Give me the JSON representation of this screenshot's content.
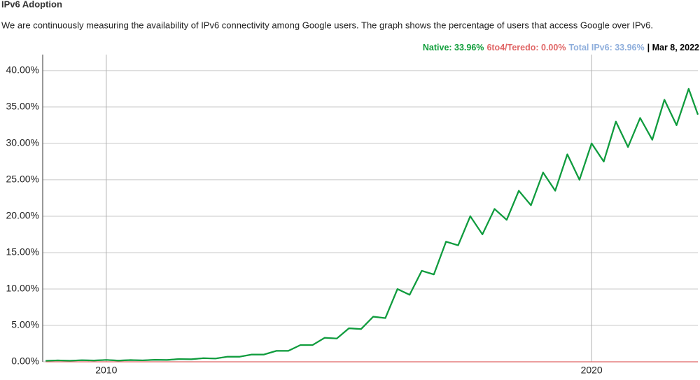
{
  "chart_data": {
    "type": "line",
    "title": "IPv6 Adoption",
    "subtitle": "We are continuously measuring the availability of IPv6 connectivity among Google users. The graph shows the percentage of users that access Google over IPv6.",
    "date": "| Mar 8, 2022",
    "x": [
      2008.75,
      2009.0,
      2009.25,
      2009.5,
      2009.75,
      2010.0,
      2010.25,
      2010.5,
      2010.75,
      2011.0,
      2011.25,
      2011.5,
      2011.75,
      2012.0,
      2012.25,
      2012.5,
      2012.75,
      2013.0,
      2013.25,
      2013.5,
      2013.75,
      2014.0,
      2014.25,
      2014.5,
      2014.75,
      2015.0,
      2015.25,
      2015.5,
      2015.75,
      2016.0,
      2016.25,
      2016.5,
      2016.75,
      2017.0,
      2017.25,
      2017.5,
      2017.75,
      2018.0,
      2018.25,
      2018.5,
      2018.75,
      2019.0,
      2019.25,
      2019.5,
      2019.75,
      2020.0,
      2020.25,
      2020.5,
      2020.75,
      2021.0,
      2021.25,
      2021.5,
      2021.75,
      2022.0,
      2022.19
    ],
    "series": [
      {
        "name": "Native: 33.96%",
        "color": "#0f9d3a",
        "values": [
          0.14,
          0.2,
          0.15,
          0.22,
          0.18,
          0.26,
          0.17,
          0.24,
          0.2,
          0.28,
          0.25,
          0.38,
          0.35,
          0.5,
          0.45,
          0.7,
          0.7,
          1.0,
          1.0,
          1.5,
          1.5,
          2.3,
          2.3,
          3.3,
          3.2,
          4.6,
          4.5,
          6.2,
          6.0,
          10.0,
          9.2,
          12.5,
          12.0,
          16.5,
          16.0,
          20.0,
          17.5,
          21.0,
          19.5,
          23.5,
          21.5,
          26.0,
          23.5,
          28.5,
          25.0,
          30.0,
          27.5,
          33.0,
          29.5,
          33.5,
          30.5,
          36.0,
          32.5,
          37.5,
          33.96
        ]
      },
      {
        "name": "6to4/Teredo: 0.00%",
        "color": "#e06666",
        "values": [
          0,
          0,
          0,
          0,
          0,
          0,
          0,
          0,
          0,
          0,
          0,
          0,
          0,
          0,
          0,
          0,
          0,
          0,
          0,
          0,
          0,
          0,
          0,
          0,
          0,
          0,
          0,
          0,
          0,
          0,
          0,
          0,
          0,
          0,
          0,
          0,
          0,
          0,
          0,
          0,
          0,
          0,
          0,
          0,
          0,
          0,
          0,
          0,
          0,
          0,
          0,
          0,
          0,
          0,
          0
        ]
      },
      {
        "name": "Total IPv6: 33.96%",
        "color": "#8eaedc",
        "values": [
          0.14,
          0.2,
          0.15,
          0.22,
          0.18,
          0.26,
          0.17,
          0.24,
          0.2,
          0.28,
          0.25,
          0.38,
          0.35,
          0.5,
          0.45,
          0.7,
          0.7,
          1.0,
          1.0,
          1.5,
          1.5,
          2.3,
          2.3,
          3.3,
          3.2,
          4.6,
          4.5,
          6.2,
          6.0,
          10.0,
          9.2,
          12.5,
          12.0,
          16.5,
          16.0,
          20.0,
          17.5,
          21.0,
          19.5,
          23.5,
          21.5,
          26.0,
          23.5,
          28.5,
          25.0,
          30.0,
          27.5,
          33.0,
          29.5,
          33.5,
          30.5,
          36.0,
          32.5,
          37.5,
          33.96
        ]
      }
    ],
    "xlim": [
      2008.69,
      2022.19
    ],
    "xticks": [
      2010,
      2020
    ],
    "ylim": [
      0,
      42.2
    ],
    "yticks": [
      {
        "value": 0,
        "label": "0.00%"
      },
      {
        "value": 5,
        "label": "5.00%"
      },
      {
        "value": 10,
        "label": "10.00%"
      },
      {
        "value": 15,
        "label": "15.00%"
      },
      {
        "value": 20,
        "label": "20.00%"
      },
      {
        "value": 25,
        "label": "25.00%"
      },
      {
        "value": 30,
        "label": "30.00%"
      },
      {
        "value": 35,
        "label": "35.00%"
      },
      {
        "value": 40,
        "label": "40.00%"
      }
    ],
    "grid": true
  }
}
